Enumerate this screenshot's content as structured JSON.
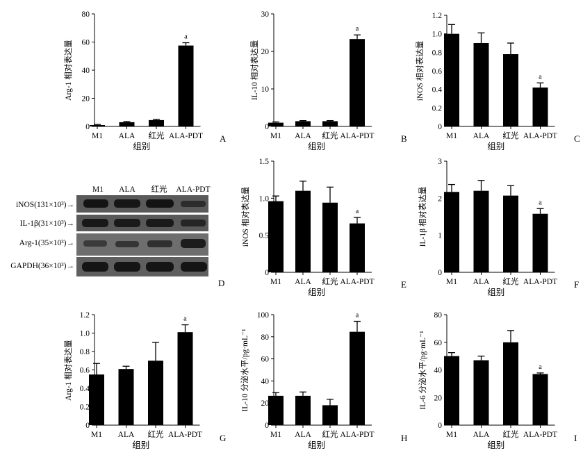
{
  "figure": {
    "group_label": "组别",
    "western_blot": {
      "letter": "D",
      "lanes": [
        "M1",
        "ALA",
        "红光",
        "ALA-PDT"
      ],
      "rows": [
        "iNOS(131×10³)→",
        "IL-1β(31×10³)→",
        "Arg-1(35×10³)→",
        "GAPDH(36×10³)→"
      ]
    }
  },
  "chart_data": [
    {
      "id": "A",
      "letter": "A",
      "type": "bar",
      "categories": [
        "M1",
        "ALA",
        "红光",
        "ALA-PDT"
      ],
      "values": [
        1,
        3,
        4.5,
        57.5
      ],
      "errors": [
        0.4,
        0.5,
        0.6,
        2
      ],
      "ylabel": "Arg-1 相对表达量",
      "xlabel": "组别",
      "ylim": [
        0,
        80
      ],
      "ticks": [
        0,
        20,
        40,
        60,
        80
      ],
      "tick_labels": [
        "0",
        "20",
        "40",
        "60",
        "80"
      ],
      "significance": [
        null,
        null,
        null,
        "a"
      ]
    },
    {
      "id": "B",
      "letter": "B",
      "type": "bar",
      "categories": [
        "M1",
        "ALA",
        "红光",
        "ALA-PDT"
      ],
      "values": [
        1,
        1.4,
        1.4,
        23.3
      ],
      "errors": [
        0.2,
        0.15,
        0.15,
        1.1
      ],
      "ylabel": "IL-10 相对表达量",
      "xlabel": "组别",
      "ylim": [
        0,
        30
      ],
      "ticks": [
        0,
        10,
        20,
        30
      ],
      "tick_labels": [
        "0",
        "10",
        "20",
        "30"
      ],
      "significance": [
        null,
        null,
        null,
        "a"
      ]
    },
    {
      "id": "C",
      "letter": "C",
      "type": "bar",
      "categories": [
        "M1",
        "ALA",
        "红光",
        "ALA-PDT"
      ],
      "values": [
        1.0,
        0.9,
        0.78,
        0.42
      ],
      "errors": [
        0.1,
        0.11,
        0.12,
        0.05
      ],
      "ylabel": "iNOS 相对表达量",
      "xlabel": "组别",
      "ylim": [
        0,
        1.2
      ],
      "ticks": [
        0,
        0.2,
        0.4,
        0.6,
        0.8,
        1.0,
        1.2
      ],
      "tick_labels": [
        "0",
        "0.2",
        "0.4",
        "0.6",
        "0.8",
        "1.0",
        "1.2"
      ],
      "significance": [
        null,
        null,
        null,
        "a"
      ]
    },
    {
      "id": "E",
      "letter": "E",
      "type": "bar",
      "categories": [
        "M1",
        "ALA",
        "红光",
        "ALA-PDT"
      ],
      "values": [
        0.96,
        1.1,
        0.94,
        0.66
      ],
      "errors": [
        0.07,
        0.13,
        0.21,
        0.08
      ],
      "ylabel": "iNOS 相对表达量",
      "xlabel": "组别",
      "ylim": [
        0,
        1.5
      ],
      "ticks": [
        0,
        0.5,
        1.0,
        1.5
      ],
      "tick_labels": [
        "0",
        "0.5",
        "1.0",
        "1.5"
      ],
      "significance": [
        null,
        null,
        null,
        "a"
      ]
    },
    {
      "id": "F",
      "letter": "F",
      "type": "bar",
      "categories": [
        "M1",
        "ALA",
        "红光",
        "ALA-PDT"
      ],
      "values": [
        2.17,
        2.2,
        2.07,
        1.58
      ],
      "errors": [
        0.2,
        0.28,
        0.27,
        0.14
      ],
      "ylabel": "IL-1β 相对表达量",
      "xlabel": "组别",
      "ylim": [
        0,
        3
      ],
      "ticks": [
        0,
        1,
        2,
        3
      ],
      "tick_labels": [
        "0",
        "1",
        "2",
        "3"
      ],
      "significance": [
        null,
        null,
        null,
        "a"
      ]
    },
    {
      "id": "G",
      "letter": "G",
      "type": "bar",
      "categories": [
        "M1",
        "ALA",
        "红光",
        "ALA-PDT"
      ],
      "values": [
        0.55,
        0.61,
        0.7,
        1.01
      ],
      "errors": [
        0.12,
        0.03,
        0.2,
        0.08
      ],
      "ylabel": "Arg-1 相对表达量",
      "xlabel": "组别",
      "ylim": [
        0,
        1.2
      ],
      "ticks": [
        0,
        0.2,
        0.4,
        0.6,
        0.8,
        1.0,
        1.2
      ],
      "tick_labels": [
        "0",
        "0.2",
        "0.4",
        "0.6",
        "0.8",
        "1.0",
        "1.2"
      ],
      "significance": [
        null,
        null,
        null,
        "a"
      ]
    },
    {
      "id": "H",
      "letter": "H",
      "type": "bar",
      "categories": [
        "M1",
        "ALA",
        "红光",
        "ALA-PDT"
      ],
      "values": [
        26.5,
        26.5,
        18,
        84.5
      ],
      "errors": [
        3,
        3.5,
        5.5,
        9.5
      ],
      "ylabel": "IL-10 分泌水平/pg·mL⁻¹",
      "xlabel": "组别",
      "ylim": [
        0,
        100
      ],
      "ticks": [
        0,
        20,
        40,
        60,
        80,
        100
      ],
      "tick_labels": [
        "0",
        "20",
        "40",
        "60",
        "80",
        "100"
      ],
      "significance": [
        null,
        null,
        null,
        "a"
      ]
    },
    {
      "id": "I",
      "letter": "I",
      "type": "bar",
      "categories": [
        "M1",
        "ALA",
        "红光",
        "ALA-PDT"
      ],
      "values": [
        50,
        47,
        60,
        37
      ],
      "errors": [
        2.5,
        3,
        8.5,
        0.8
      ],
      "ylabel": "IL-6 分泌水平/pg·mL⁻¹",
      "xlabel": "组别",
      "ylim": [
        0,
        80
      ],
      "ticks": [
        0,
        20,
        40,
        60,
        80
      ],
      "tick_labels": [
        "0",
        "20",
        "40",
        "60",
        "80"
      ],
      "significance": [
        null,
        null,
        null,
        "a"
      ]
    }
  ]
}
